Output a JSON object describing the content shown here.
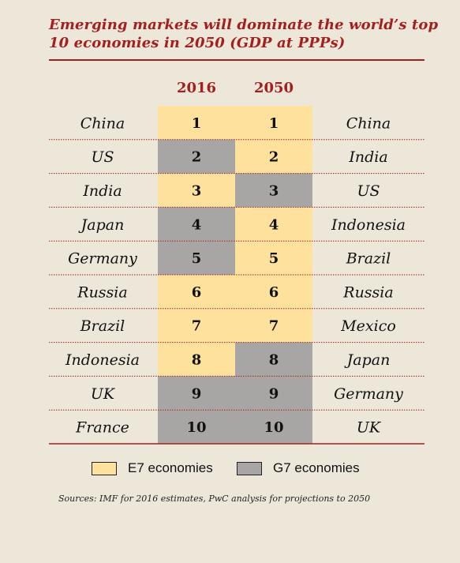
{
  "title": "Emerging markets will dominate the world’s top 10 economies in 2050 (GDP at PPPs)",
  "colors": {
    "e7": "#fde19c",
    "g7": "#a7a6a4",
    "accent": "#a32020",
    "background": "#ede7d9"
  },
  "chart_data": {
    "type": "table",
    "columns": [
      "2016",
      "2050"
    ],
    "ranks": [
      "1",
      "2",
      "3",
      "4",
      "5",
      "6",
      "7",
      "8",
      "9",
      "10"
    ],
    "rows_2016": [
      {
        "country": "China",
        "group": "E7"
      },
      {
        "country": "US",
        "group": "G7"
      },
      {
        "country": "India",
        "group": "E7"
      },
      {
        "country": "Japan",
        "group": "G7"
      },
      {
        "country": "Germany",
        "group": "G7"
      },
      {
        "country": "Russia",
        "group": "E7"
      },
      {
        "country": "Brazil",
        "group": "E7"
      },
      {
        "country": "Indonesia",
        "group": "E7"
      },
      {
        "country": "UK",
        "group": "G7"
      },
      {
        "country": "France",
        "group": "G7"
      }
    ],
    "rows_2050": [
      {
        "country": "China",
        "group": "E7"
      },
      {
        "country": "India",
        "group": "E7"
      },
      {
        "country": "US",
        "group": "G7"
      },
      {
        "country": "Indonesia",
        "group": "E7"
      },
      {
        "country": "Brazil",
        "group": "E7"
      },
      {
        "country": "Russia",
        "group": "E7"
      },
      {
        "country": "Mexico",
        "group": "E7"
      },
      {
        "country": "Japan",
        "group": "G7"
      },
      {
        "country": "Germany",
        "group": "G7"
      },
      {
        "country": "UK",
        "group": "G7"
      }
    ],
    "legend": [
      {
        "label": "E7 economies",
        "group": "E7"
      },
      {
        "label": "G7 economies",
        "group": "G7"
      }
    ]
  },
  "source": "Sources: IMF for 2016 estimates, PwC analysis for projections to 2050"
}
